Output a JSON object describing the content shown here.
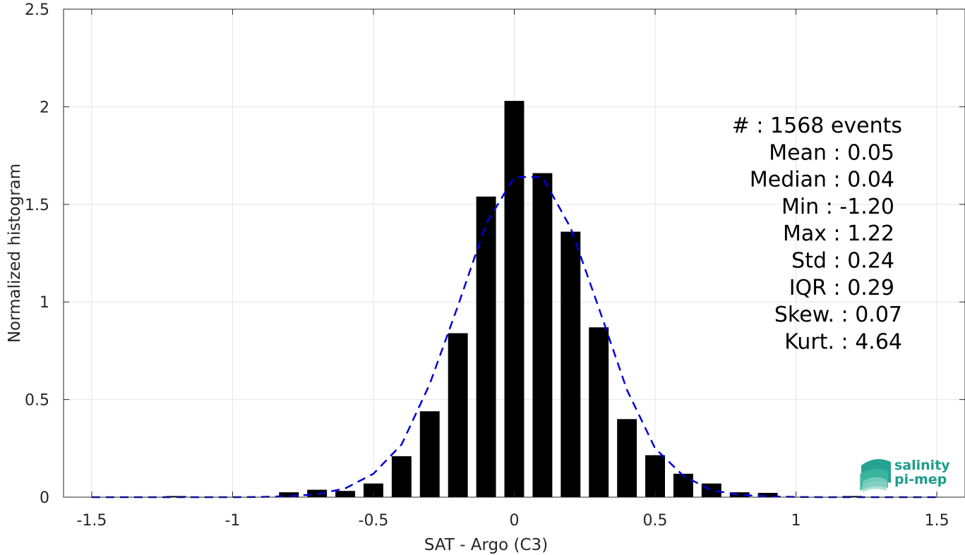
{
  "chart_data": {
    "type": "bar",
    "xlabel": "SAT - Argo (C3)",
    "ylabel": "Normalized histogram",
    "xlim": [
      -1.6,
      1.6
    ],
    "ylim": [
      0,
      2.5
    ],
    "grid": true,
    "xticks": [
      -1.5,
      -1,
      -0.5,
      0,
      0.5,
      1,
      1.5
    ],
    "xtick_labels": [
      "-1.5",
      "-1",
      "-0.5",
      "0",
      "0.5",
      "1",
      "1.5"
    ],
    "yticks": [
      0,
      0.5,
      1,
      1.5,
      2,
      2.5
    ],
    "ytick_labels": [
      "0",
      "0.5",
      "1",
      "1.5",
      "2",
      "2.5"
    ],
    "bar_width": 0.07,
    "bars": [
      {
        "x": -1.2,
        "y": 0.006
      },
      {
        "x": -0.8,
        "y": 0.025
      },
      {
        "x": -0.7,
        "y": 0.038
      },
      {
        "x": -0.6,
        "y": 0.032
      },
      {
        "x": -0.5,
        "y": 0.07
      },
      {
        "x": -0.4,
        "y": 0.21
      },
      {
        "x": -0.3,
        "y": 0.44
      },
      {
        "x": -0.2,
        "y": 0.84
      },
      {
        "x": -0.1,
        "y": 1.54
      },
      {
        "x": 0.0,
        "y": 2.03
      },
      {
        "x": 0.1,
        "y": 1.66
      },
      {
        "x": 0.2,
        "y": 1.36
      },
      {
        "x": 0.3,
        "y": 0.87
      },
      {
        "x": 0.4,
        "y": 0.4
      },
      {
        "x": 0.5,
        "y": 0.215
      },
      {
        "x": 0.6,
        "y": 0.12
      },
      {
        "x": 0.7,
        "y": 0.07
      },
      {
        "x": 0.8,
        "y": 0.025
      },
      {
        "x": 0.9,
        "y": 0.022
      },
      {
        "x": 1.2,
        "y": 0.006
      }
    ],
    "fit_curve": {
      "x": [
        -1.5,
        -1.4,
        -1.3,
        -1.2,
        -1.1,
        -1.0,
        -0.9,
        -0.8,
        -0.7,
        -0.6,
        -0.5,
        -0.4,
        -0.3,
        -0.2,
        -0.1,
        0.0,
        0.1,
        0.2,
        0.3,
        0.4,
        0.5,
        0.6,
        0.7,
        0.8,
        0.9,
        1.0,
        1.1,
        1.2,
        1.3,
        1.4,
        1.5
      ],
      "y": [
        0,
        0,
        0,
        0,
        0,
        0,
        0.001,
        0.005,
        0.015,
        0.045,
        0.12,
        0.27,
        0.58,
        0.98,
        1.4,
        1.64,
        1.64,
        1.38,
        0.97,
        0.55,
        0.25,
        0.11,
        0.035,
        0.012,
        0.004,
        0.001,
        0,
        0,
        0,
        0,
        0
      ],
      "color": "#0000dd",
      "style": "dashed"
    },
    "bar_color": "#000000",
    "stats": [
      "#  : 1568 events",
      "Mean : 0.05",
      "Median : 0.04",
      "Min : -1.20",
      "Max : 1.22",
      "Std : 0.24",
      "IQR : 0.29",
      "Skew. : 0.07",
      "Kurt. : 4.64"
    ]
  },
  "logo": {
    "line1": "salinity",
    "line2": "pi-mep",
    "color": "#1a9e8a"
  }
}
